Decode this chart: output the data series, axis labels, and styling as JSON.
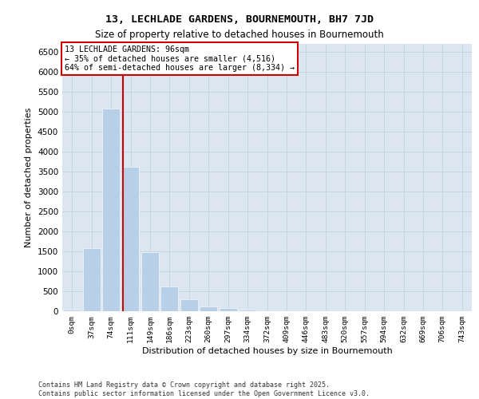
{
  "title_line1": "13, LECHLADE GARDENS, BOURNEMOUTH, BH7 7JD",
  "title_line2": "Size of property relative to detached houses in Bournemouth",
  "xlabel": "Distribution of detached houses by size in Bournemouth",
  "ylabel": "Number of detached properties",
  "footer_line1": "Contains HM Land Registry data © Crown copyright and database right 2025.",
  "footer_line2": "Contains public sector information licensed under the Open Government Licence v3.0.",
  "bar_labels": [
    "0sqm",
    "37sqm",
    "74sqm",
    "111sqm",
    "149sqm",
    "186sqm",
    "223sqm",
    "260sqm",
    "297sqm",
    "334sqm",
    "372sqm",
    "409sqm",
    "446sqm",
    "483sqm",
    "520sqm",
    "557sqm",
    "594sqm",
    "632sqm",
    "669sqm",
    "706sqm",
    "743sqm"
  ],
  "bar_values": [
    50,
    1580,
    5080,
    3620,
    1480,
    620,
    300,
    130,
    80,
    40,
    10,
    0,
    0,
    0,
    0,
    0,
    0,
    0,
    0,
    0,
    0
  ],
  "bar_color": "#b8cfe8",
  "bar_edge_color": "#ffffff",
  "grid_color": "#c8d4e4",
  "background_color": "#dce6f0",
  "vline_x": 2.63,
  "vline_color": "#cc0000",
  "annotation_title": "13 LECHLADE GARDENS: 96sqm",
  "annotation_line1": "← 35% of detached houses are smaller (4,516)",
  "annotation_line2": "64% of semi-detached houses are larger (8,334) →",
  "annotation_box_color": "#cc0000",
  "ylim": [
    0,
    6700
  ],
  "yticks": [
    0,
    500,
    1000,
    1500,
    2000,
    2500,
    3000,
    3500,
    4000,
    4500,
    5000,
    5500,
    6000,
    6500
  ]
}
